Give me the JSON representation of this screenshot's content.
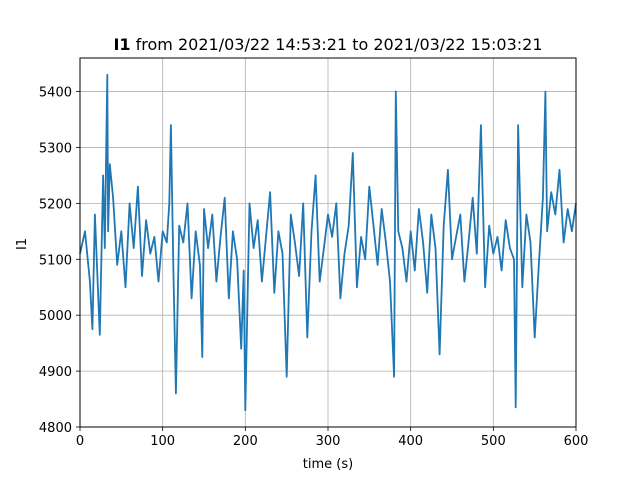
{
  "chart_data": {
    "type": "line",
    "title_bold": "I1",
    "title_rest": " from 2021/03/22 14:53:21 to 2021/03/22 15:03:21",
    "xlabel": "time (s)",
    "ylabel": "I1",
    "xlim": [
      0,
      600
    ],
    "ylim": [
      4800,
      5460
    ],
    "xticks": [
      0,
      100,
      200,
      300,
      400,
      500,
      600
    ],
    "yticks": [
      4800,
      4900,
      5000,
      5100,
      5200,
      5300,
      5400
    ],
    "grid": true,
    "line_color": "#1f77b4",
    "series": [
      {
        "x": [
          0,
          6,
          12,
          15,
          18,
          24,
          28,
          30,
          33,
          34,
          36,
          40,
          45,
          50,
          55,
          60,
          65,
          70,
          75,
          80,
          85,
          90,
          95,
          100,
          105,
          108,
          110,
          113,
          116,
          120,
          125,
          130,
          135,
          140,
          145,
          148,
          150,
          155,
          160,
          165,
          170,
          175,
          180,
          185,
          190,
          195,
          198,
          200,
          205,
          210,
          215,
          220,
          225,
          230,
          235,
          240,
          245,
          250,
          255,
          260,
          265,
          270,
          275,
          280,
          285,
          290,
          295,
          300,
          305,
          310,
          315,
          320,
          325,
          330,
          335,
          340,
          345,
          350,
          355,
          360,
          365,
          370,
          375,
          380,
          382,
          385,
          390,
          395,
          400,
          405,
          410,
          415,
          420,
          425,
          430,
          435,
          440,
          445,
          450,
          455,
          460,
          465,
          470,
          475,
          480,
          485,
          490,
          495,
          500,
          505,
          510,
          515,
          520,
          525,
          527,
          530,
          535,
          540,
          545,
          550,
          555,
          560,
          563,
          565,
          570,
          575,
          580,
          585,
          590,
          595,
          600
        ],
        "values": [
          5110,
          5150,
          5060,
          4975,
          5180,
          4965,
          5250,
          5120,
          5430,
          5150,
          5270,
          5210,
          5090,
          5150,
          5050,
          5200,
          5120,
          5230,
          5070,
          5170,
          5110,
          5140,
          5060,
          5150,
          5130,
          5200,
          5340,
          5080,
          4860,
          5160,
          5130,
          5200,
          5030,
          5150,
          5090,
          4925,
          5190,
          5120,
          5180,
          5060,
          5140,
          5210,
          5030,
          5150,
          5100,
          4940,
          5080,
          4830,
          5200,
          5120,
          5170,
          5060,
          5140,
          5220,
          5040,
          5150,
          5110,
          4890,
          5180,
          5130,
          5070,
          5200,
          4960,
          5150,
          5250,
          5060,
          5120,
          5180,
          5140,
          5200,
          5030,
          5110,
          5160,
          5290,
          5050,
          5140,
          5100,
          5230,
          5160,
          5090,
          5190,
          5130,
          5060,
          4890,
          5400,
          5150,
          5120,
          5060,
          5150,
          5080,
          5190,
          5130,
          5040,
          5180,
          5120,
          4930,
          5160,
          5260,
          5100,
          5140,
          5180,
          5060,
          5130,
          5210,
          5110,
          5340,
          5050,
          5160,
          5110,
          5140,
          5080,
          5170,
          5120,
          5100,
          4835,
          5340,
          5050,
          5180,
          5130,
          4960,
          5090,
          5210,
          5400,
          5150,
          5220,
          5180,
          5260,
          5130,
          5190,
          5150,
          5200
        ]
      }
    ]
  }
}
